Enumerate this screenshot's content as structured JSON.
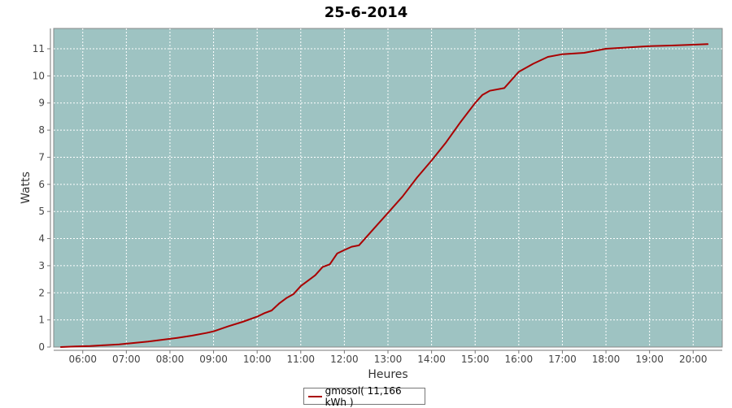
{
  "chart_data": {
    "type": "line",
    "title": "25-6-2014",
    "xlabel": "Heures",
    "ylabel": "Watts",
    "x_ticks": [
      "06:00",
      "07:00",
      "08:00",
      "09:00",
      "10:00",
      "11:00",
      "12:00",
      "13:00",
      "14:00",
      "15:00",
      "16:00",
      "17:00",
      "18:00",
      "19:00",
      "20:00"
    ],
    "y_ticks": [
      0,
      1,
      2,
      3,
      4,
      5,
      6,
      7,
      8,
      9,
      10,
      11
    ],
    "xlim": [
      "05:20",
      "20:40"
    ],
    "ylim": [
      0,
      11.75
    ],
    "grid": true,
    "legend_position": "bottom-center",
    "colors": {
      "plot_background": "#9ec3c2",
      "series": "#aa0000",
      "grid": "#ffffff"
    },
    "series": [
      {
        "name": "gmosol( 11,166 kWh )",
        "x": [
          "05:30",
          "05:50",
          "06:10",
          "06:30",
          "06:50",
          "07:10",
          "07:30",
          "07:50",
          "08:10",
          "08:30",
          "08:50",
          "09:00",
          "09:20",
          "09:40",
          "10:00",
          "10:10",
          "10:20",
          "10:30",
          "10:40",
          "10:50",
          "11:00",
          "11:10",
          "11:20",
          "11:30",
          "11:40",
          "11:50",
          "12:00",
          "12:10",
          "12:20",
          "12:40",
          "13:00",
          "13:20",
          "13:40",
          "14:00",
          "14:20",
          "14:40",
          "15:00",
          "15:10",
          "15:20",
          "15:40",
          "16:00",
          "16:20",
          "16:40",
          "17:00",
          "17:30",
          "18:00",
          "18:30",
          "19:00",
          "19:30",
          "20:00",
          "20:20"
        ],
        "values": [
          0.0,
          0.02,
          0.04,
          0.07,
          0.1,
          0.15,
          0.2,
          0.27,
          0.34,
          0.42,
          0.52,
          0.58,
          0.76,
          0.93,
          1.12,
          1.25,
          1.35,
          1.6,
          1.8,
          1.95,
          2.25,
          2.45,
          2.65,
          2.95,
          3.05,
          3.45,
          3.58,
          3.7,
          3.75,
          4.35,
          4.95,
          5.55,
          6.25,
          6.88,
          7.55,
          8.3,
          9.0,
          9.3,
          9.45,
          9.55,
          10.15,
          10.45,
          10.7,
          10.8,
          10.85,
          11.0,
          11.05,
          11.1,
          11.12,
          11.15,
          11.17
        ]
      }
    ]
  }
}
